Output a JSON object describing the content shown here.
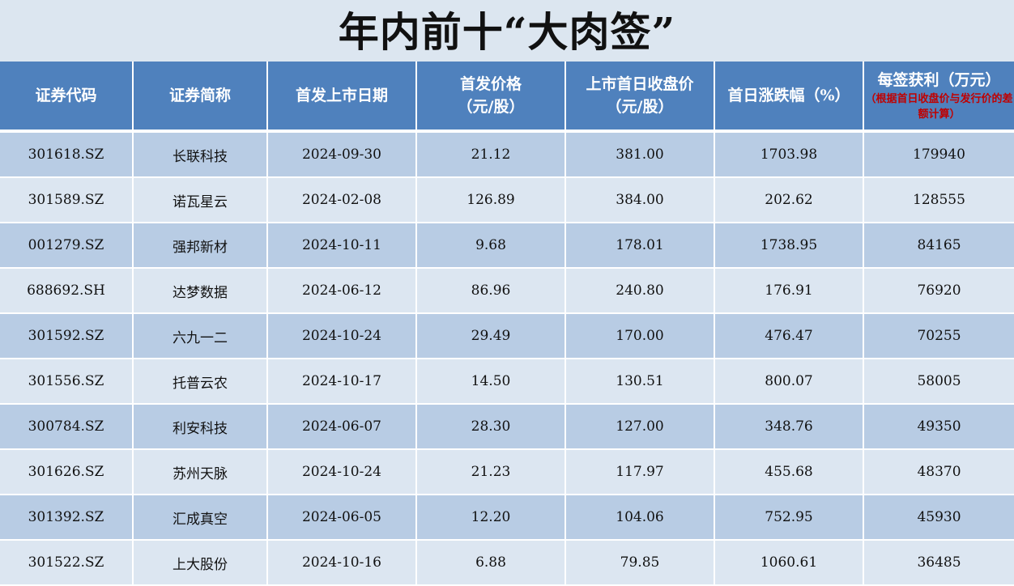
{
  "title": "年内前十“大肉签”",
  "table": {
    "headers": [
      {
        "line1": "证券代码"
      },
      {
        "line1": "证券简称"
      },
      {
        "line1": "首发上市日期"
      },
      {
        "line1": "首发价格",
        "line2": "（元/股）"
      },
      {
        "line1": "上市首日收盘价",
        "line2": "（元/股）"
      },
      {
        "line1": "首日涨跌幅（%）"
      },
      {
        "line1": "每签获利（万元）",
        "note": "（根据首日收盘价与发行价的差额计算）"
      }
    ],
    "rows": [
      {
        "code": "301618.SZ",
        "name": "长联科技",
        "date": "2024-09-30",
        "issue_price": "21.12",
        "close_price": "381.00",
        "change_pct": "1703.98",
        "profit": "179940"
      },
      {
        "code": "301589.SZ",
        "name": "诺瓦星云",
        "date": "2024-02-08",
        "issue_price": "126.89",
        "close_price": "384.00",
        "change_pct": "202.62",
        "profit": "128555"
      },
      {
        "code": "001279.SZ",
        "name": "强邦新材",
        "date": "2024-10-11",
        "issue_price": "9.68",
        "close_price": "178.01",
        "change_pct": "1738.95",
        "profit": "84165"
      },
      {
        "code": "688692.SH",
        "name": "达梦数据",
        "date": "2024-06-12",
        "issue_price": "86.96",
        "close_price": "240.80",
        "change_pct": "176.91",
        "profit": "76920"
      },
      {
        "code": "301592.SZ",
        "name": "六九一二",
        "date": "2024-10-24",
        "issue_price": "29.49",
        "close_price": "170.00",
        "change_pct": "476.47",
        "profit": "70255"
      },
      {
        "code": "301556.SZ",
        "name": "托普云农",
        "date": "2024-10-17",
        "issue_price": "14.50",
        "close_price": "130.51",
        "change_pct": "800.07",
        "profit": "58005"
      },
      {
        "code": "300784.SZ",
        "name": "利安科技",
        "date": "2024-06-07",
        "issue_price": "28.30",
        "close_price": "127.00",
        "change_pct": "348.76",
        "profit": "49350"
      },
      {
        "code": "301626.SZ",
        "name": "苏州天脉",
        "date": "2024-10-24",
        "issue_price": "21.23",
        "close_price": "117.97",
        "change_pct": "455.68",
        "profit": "48370"
      },
      {
        "code": "301392.SZ",
        "name": "汇成真空",
        "date": "2024-06-05",
        "issue_price": "12.20",
        "close_price": "104.06",
        "change_pct": "752.95",
        "profit": "45930"
      },
      {
        "code": "301522.SZ",
        "name": "上大股份",
        "date": "2024-10-16",
        "issue_price": "6.88",
        "close_price": "79.85",
        "change_pct": "1060.61",
        "profit": "36485"
      }
    ]
  },
  "colors": {
    "header_bg": "#4f81bd",
    "row_dark": "#b8cce4",
    "row_light": "#dce6f1",
    "note_red": "#c00000",
    "page_bg": "#dce6f0"
  }
}
